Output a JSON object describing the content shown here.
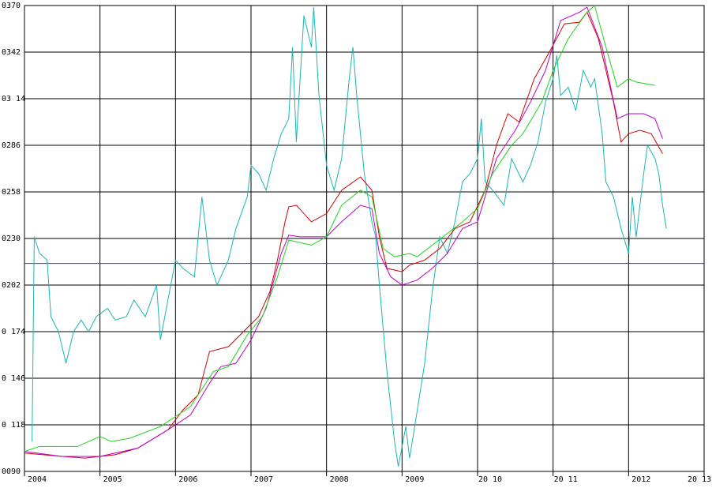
{
  "chart_data": {
    "type": "line",
    "xlim": [
      2004,
      2013
    ],
    "xticks": [
      {
        "value": 2004,
        "label": "2004"
      },
      {
        "value": 2005,
        "label": "2005"
      },
      {
        "value": 2006,
        "label": "2006"
      },
      {
        "value": 2007,
        "label": "2007"
      },
      {
        "value": 2008,
        "label": "2008"
      },
      {
        "value": 2009,
        "label": "2009"
      },
      {
        "value": 2010,
        "label": "20 10"
      },
      {
        "value": 2011,
        "label": "20 11"
      },
      {
        "value": 2012,
        "label": "2012"
      },
      {
        "value": 2013,
        "label": "20 13"
      }
    ],
    "ylim": [
      0.09,
      0.37
    ],
    "yticks": [
      {
        "value": 0.09,
        "label": "0090"
      },
      {
        "value": 0.118,
        "label": "0 118"
      },
      {
        "value": 0.146,
        "label": "0 146"
      },
      {
        "value": 0.174,
        "label": "0 174"
      },
      {
        "value": 0.202,
        "label": "0202"
      },
      {
        "value": 0.23,
        "label": "0230"
      },
      {
        "value": 0.258,
        "label": "0258"
      },
      {
        "value": 0.286,
        "label": "0286"
      },
      {
        "value": 0.314,
        "label": "03 14"
      },
      {
        "value": 0.342,
        "label": "0342"
      },
      {
        "value": 0.37,
        "label": "0370"
      }
    ],
    "grid": true,
    "reference_line": {
      "value": 0.215,
      "color": "#1f3fbf"
    },
    "series": [
      {
        "color": "#1ab5b5",
        "x": [
          2004.1,
          2004.13,
          2004.2,
          2004.3,
          2004.35,
          2004.45,
          2004.55,
          2004.65,
          2004.75,
          2004.85,
          2004.95,
          2005.1,
          2005.2,
          2005.35,
          2005.45,
          2005.6,
          2005.75,
          2005.8,
          2006.0,
          2006.1,
          2006.25,
          2006.35,
          2006.45,
          2006.55,
          2006.7,
          2006.8,
          2006.95,
          2007.0,
          2007.1,
          2007.2,
          2007.3,
          2007.4,
          2007.5,
          2007.55,
          2007.6,
          2007.7,
          2007.8,
          2007.83,
          2007.9,
          2008.0,
          2008.1,
          2008.2,
          2008.3,
          2008.35,
          2008.4,
          2008.5,
          2008.6,
          2008.65,
          2008.7,
          2008.8,
          2008.9,
          2008.95,
          2009.05,
          2009.1,
          2009.15,
          2009.3,
          2009.4,
          2009.5,
          2009.6,
          2009.7,
          2009.8,
          2009.9,
          2010.0,
          2010.05,
          2010.1,
          2010.2,
          2010.35,
          2010.45,
          2010.6,
          2010.7,
          2010.8,
          2010.9,
          2011.0,
          2011.05,
          2011.1,
          2011.2,
          2011.3,
          2011.4,
          2011.5,
          2011.55,
          2011.65,
          2011.7,
          2011.8,
          2011.9,
          2012.0,
          2012.05,
          2012.1,
          2012.2,
          2012.25,
          2012.35,
          2012.4,
          2012.45,
          2012.5
        ],
        "values": [
          0.108,
          0.231,
          0.221,
          0.217,
          0.183,
          0.174,
          0.155,
          0.174,
          0.181,
          0.174,
          0.183,
          0.188,
          0.181,
          0.183,
          0.193,
          0.183,
          0.202,
          0.169,
          0.217,
          0.212,
          0.207,
          0.255,
          0.217,
          0.202,
          0.217,
          0.236,
          0.255,
          0.274,
          0.269,
          0.259,
          0.278,
          0.293,
          0.302,
          0.345,
          0.288,
          0.364,
          0.345,
          0.369,
          0.316,
          0.274,
          0.259,
          0.278,
          0.326,
          0.345,
          0.316,
          0.269,
          0.24,
          0.231,
          0.202,
          0.15,
          0.108,
          0.093,
          0.117,
          0.098,
          0.112,
          0.155,
          0.198,
          0.231,
          0.221,
          0.24,
          0.264,
          0.269,
          0.278,
          0.302,
          0.264,
          0.259,
          0.25,
          0.278,
          0.264,
          0.274,
          0.288,
          0.312,
          0.326,
          0.34,
          0.316,
          0.321,
          0.307,
          0.331,
          0.321,
          0.326,
          0.293,
          0.264,
          0.255,
          0.236,
          0.221,
          0.255,
          0.231,
          0.269,
          0.286,
          0.278,
          0.269,
          0.25,
          0.236
        ]
      },
      {
        "color": "#d40000",
        "x": [
          2004.0,
          2004.5,
          2004.8,
          2005.2,
          2005.5,
          2005.9,
          2006.1,
          2006.3,
          2006.45,
          2006.7,
          2006.9,
          2007.1,
          2007.25,
          2007.35,
          2007.45,
          2007.5,
          2007.6,
          2007.8,
          2008.0,
          2008.2,
          2008.45,
          2008.6,
          2008.7,
          2008.8,
          2009.0,
          2009.1,
          2009.3,
          2009.5,
          2009.7,
          2009.9,
          2010.1,
          2010.25,
          2010.4,
          2010.55,
          2010.75,
          2010.95,
          2011.15,
          2011.35,
          2011.45,
          2011.6,
          2011.8,
          2011.9,
          2012.0,
          2012.15,
          2012.3,
          2012.45
        ],
        "values": [
          0.101,
          0.099,
          0.098,
          0.1,
          0.104,
          0.115,
          0.127,
          0.136,
          0.162,
          0.165,
          0.174,
          0.183,
          0.198,
          0.217,
          0.24,
          0.249,
          0.25,
          0.24,
          0.245,
          0.259,
          0.267,
          0.259,
          0.231,
          0.212,
          0.21,
          0.214,
          0.217,
          0.224,
          0.236,
          0.24,
          0.259,
          0.286,
          0.305,
          0.3,
          0.326,
          0.342,
          0.359,
          0.36,
          0.366,
          0.35,
          0.312,
          0.288,
          0.293,
          0.295,
          0.293,
          0.281
        ]
      },
      {
        "color": "#c000c8",
        "x": [
          2004.0,
          2004.5,
          2005.0,
          2005.5,
          2005.9,
          2006.2,
          2006.45,
          2006.6,
          2006.8,
          2007.0,
          2007.2,
          2007.4,
          2007.5,
          2007.65,
          2008.0,
          2008.2,
          2008.45,
          2008.6,
          2008.7,
          2008.85,
          2009.0,
          2009.2,
          2009.4,
          2009.6,
          2009.8,
          2010.0,
          2010.25,
          2010.5,
          2010.7,
          2010.9,
          2011.1,
          2011.35,
          2011.45,
          2011.65,
          2011.85,
          2012.0,
          2012.2,
          2012.35,
          2012.45
        ],
        "values": [
          0.102,
          0.099,
          0.099,
          0.104,
          0.115,
          0.124,
          0.143,
          0.153,
          0.155,
          0.169,
          0.188,
          0.221,
          0.232,
          0.231,
          0.231,
          0.24,
          0.25,
          0.248,
          0.221,
          0.207,
          0.202,
          0.205,
          0.212,
          0.221,
          0.236,
          0.24,
          0.278,
          0.295,
          0.312,
          0.331,
          0.361,
          0.366,
          0.369,
          0.345,
          0.302,
          0.305,
          0.305,
          0.302,
          0.29
        ]
      },
      {
        "color": "#1ed41e",
        "x": [
          2004.0,
          2004.2,
          2004.7,
          2005.0,
          2005.15,
          2005.4,
          2005.8,
          2006.2,
          2006.5,
          2006.7,
          2006.95,
          2007.15,
          2007.35,
          2007.5,
          2007.8,
          2008.0,
          2008.2,
          2008.45,
          2008.6,
          2008.75,
          2008.9,
          2009.1,
          2009.2,
          2009.4,
          2009.6,
          2009.8,
          2010.0,
          2010.2,
          2010.45,
          2010.6,
          2010.85,
          2011.0,
          2011.2,
          2011.45,
          2011.55,
          2011.7,
          2011.85,
          2012.0,
          2012.1,
          2012.35
        ],
        "values": [
          0.102,
          0.105,
          0.105,
          0.111,
          0.108,
          0.11,
          0.117,
          0.129,
          0.15,
          0.153,
          0.172,
          0.183,
          0.207,
          0.229,
          0.226,
          0.231,
          0.25,
          0.259,
          0.255,
          0.224,
          0.219,
          0.221,
          0.219,
          0.226,
          0.233,
          0.24,
          0.248,
          0.269,
          0.286,
          0.293,
          0.312,
          0.331,
          0.35,
          0.366,
          0.37,
          0.345,
          0.321,
          0.326,
          0.324,
          0.322
        ]
      }
    ]
  }
}
